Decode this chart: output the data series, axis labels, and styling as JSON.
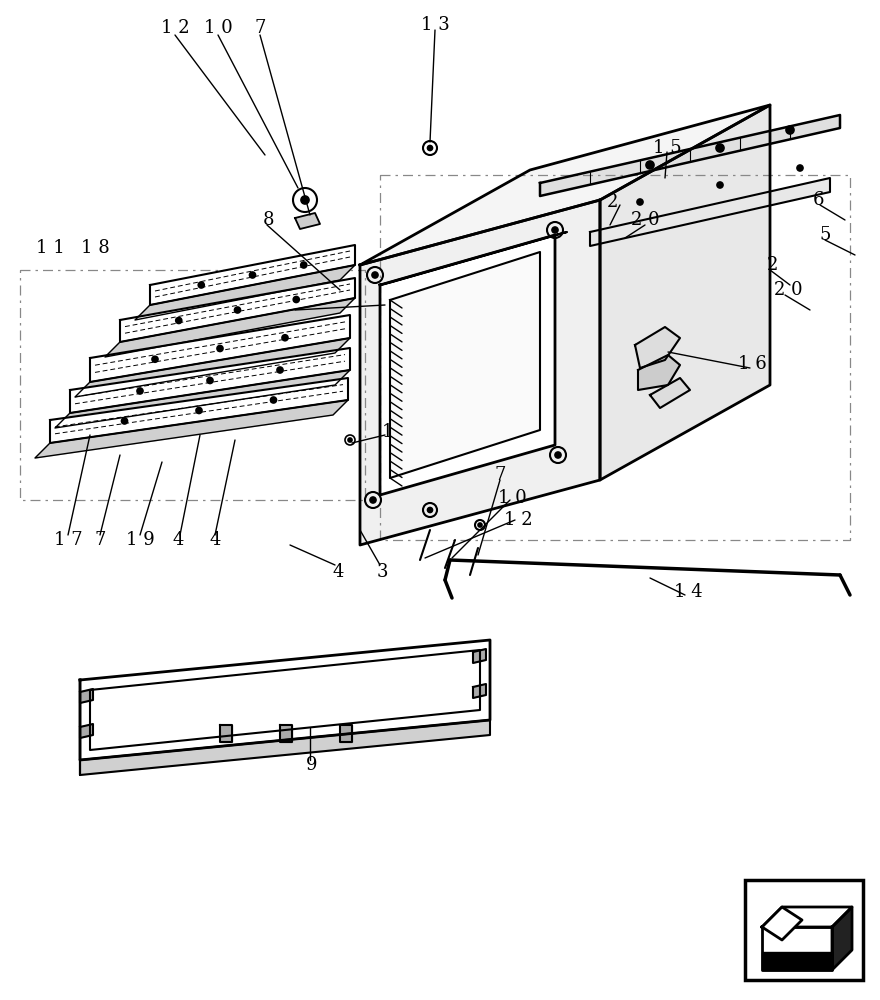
{
  "bg_color": "#ffffff",
  "line_color": "#000000",
  "fig_width": 8.8,
  "fig_height": 10.0,
  "dpi": 100
}
